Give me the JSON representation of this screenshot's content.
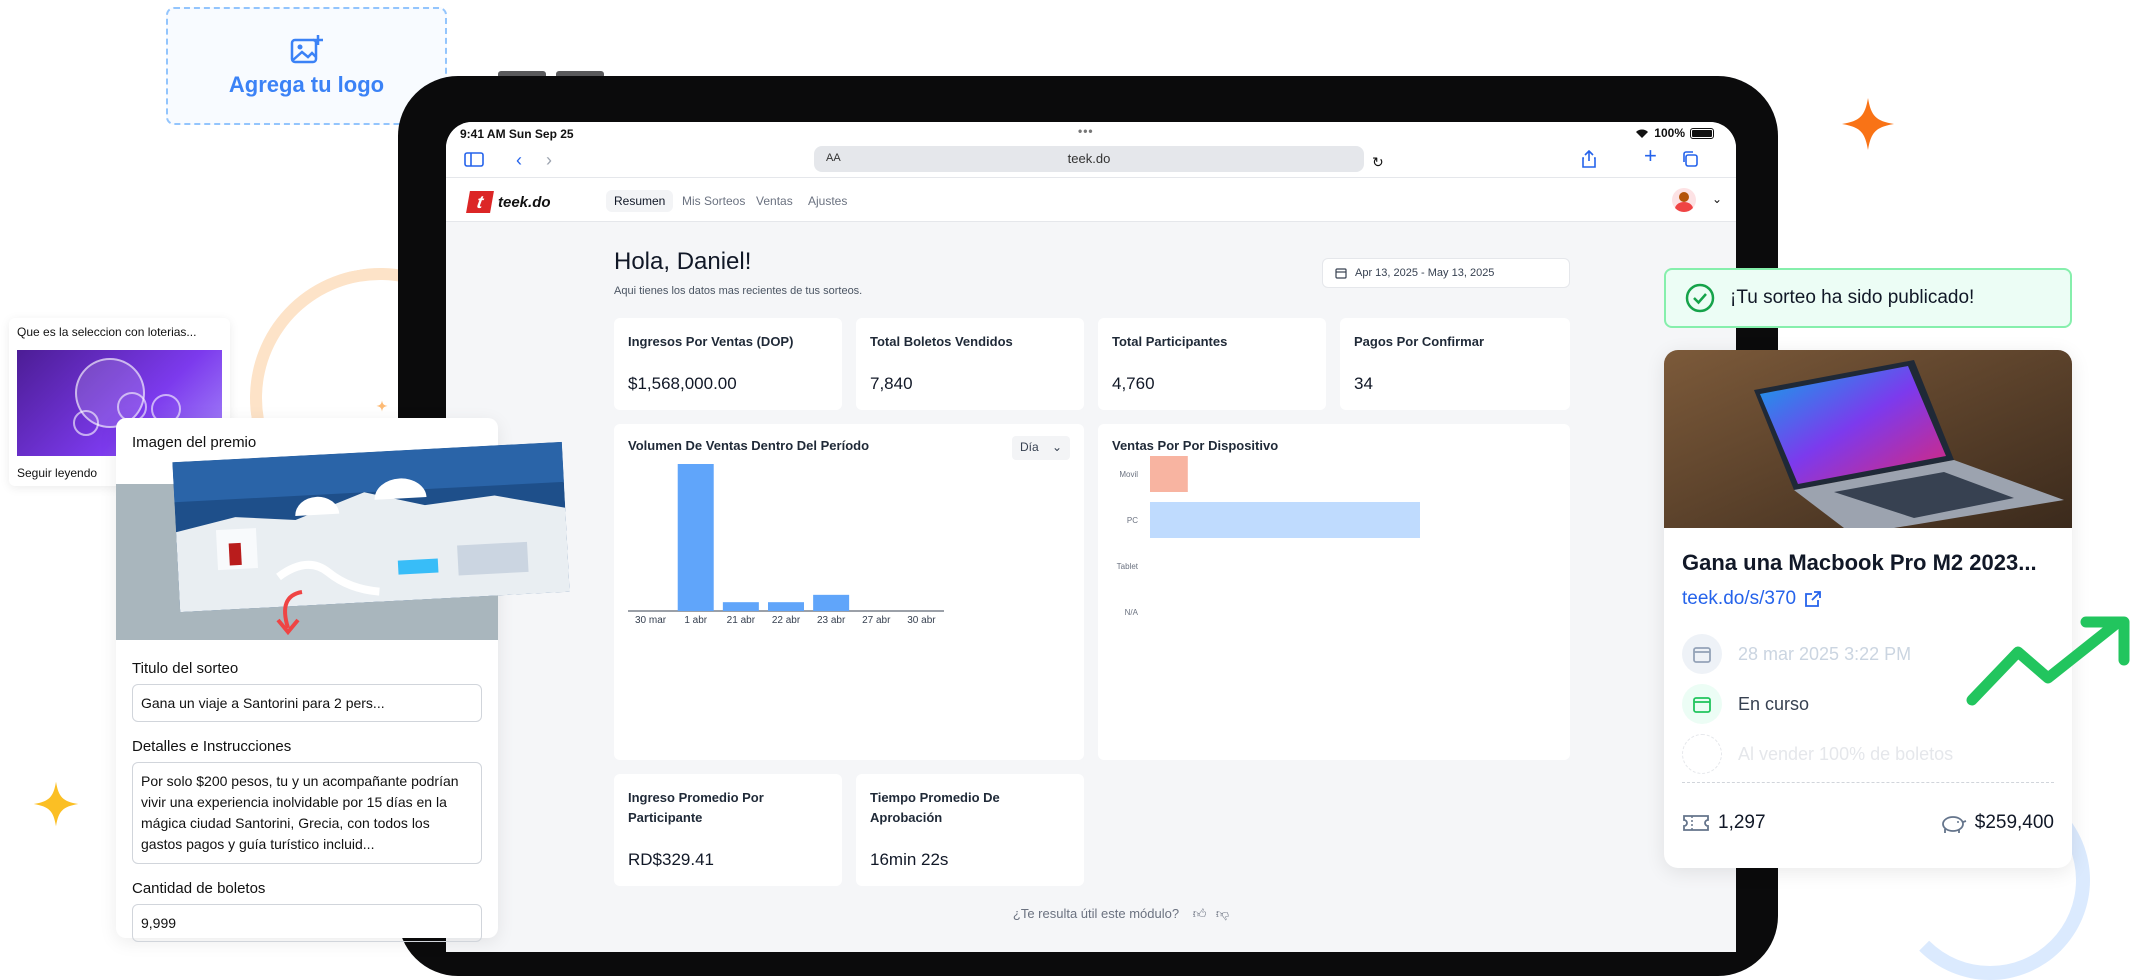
{
  "logo_placeholder": {
    "label": "Agrega tu logo"
  },
  "status_bar": {
    "time": "9:41 AM  Sun Sep 25",
    "battery": "100%"
  },
  "browser": {
    "text_size": "AA",
    "url": "teek.do"
  },
  "app": {
    "brand": "teek.do",
    "brand_mark": "t",
    "nav": [
      "Resumen",
      "Mis Sorteos",
      "Ventas",
      "Ajustes"
    ],
    "active_nav": "Resumen"
  },
  "dashboard": {
    "greeting": "Hola, Daniel!",
    "subtitle": "Aqui tienes los datos mas recientes de tus sorteos.",
    "date_range": "Apr 13, 2025 - May 13, 2025",
    "stats": [
      {
        "label": "Ingresos Por Ventas (DOP)",
        "value": "$1,568,000.00"
      },
      {
        "label": "Total Boletos Vendidos",
        "value": "7,840"
      },
      {
        "label": "Total Participantes",
        "value": "4,760"
      },
      {
        "label": "Pagos Por Confirmar",
        "value": "34"
      }
    ],
    "bottom_stats": [
      {
        "label": "Ingreso Promedio Por Participante",
        "value": "RD$329.41"
      },
      {
        "label": "Tiempo Promedio De Aprobación",
        "value": "16min 22s"
      }
    ],
    "feedback": "¿Te resulta útil este módulo?"
  },
  "chart_data": [
    {
      "type": "bar",
      "title": "Volumen De Ventas Dentro Del Período",
      "period_select": "Día",
      "categories": [
        "30 mar",
        "1 abr",
        "21 abr",
        "22 abr",
        "23 abr",
        "27 abr",
        "30 abr"
      ],
      "values": [
        0,
        100,
        6,
        6,
        11,
        0,
        0
      ],
      "color": "#60a5fa",
      "grid": false
    },
    {
      "type": "bar",
      "orientation": "horizontal",
      "title": "Ventas Por Por Dispositivo",
      "categories": [
        "Movil",
        "PC",
        "Tablet",
        "N/A"
      ],
      "values": [
        14,
        100,
        0,
        0
      ],
      "colors": [
        "#f8b4a1",
        "#bfdbfe",
        "#bfdbfe",
        "#bfdbfe"
      ],
      "grid": false
    }
  ],
  "news_card": {
    "title": "Que es la seleccion con loterias...",
    "read_more": "Seguir leyendo"
  },
  "form": {
    "image_label": "Imagen del premio",
    "title_label": "Titulo del sorteo",
    "title_value": "Gana un viaje a Santorini para 2 pers...",
    "details_label": "Detalles e Instrucciones",
    "details_value": "Por solo $200 pesos, tu y un acompañante podrían vivir una experiencia inolvidable por 15 días en la mágica ciudad Santorini, Grecia, con todos los gastos pagos y guía turístico incluid...",
    "tickets_label": "Cantidad de boletos",
    "tickets_value": "9,999"
  },
  "published": {
    "toast": "¡Tu sorteo ha sido publicado!",
    "title": "Gana una Macbook Pro M2 2023...",
    "link": "teek.do/s/370",
    "start_date": "28 mar 2025 3:22 PM",
    "status": "En curso",
    "end_condition": "Al vender 100% de boletos",
    "tickets": "1,297",
    "revenue": "$259,400"
  },
  "colors": {
    "accent": "#2563eb",
    "bar": "#60a5fa",
    "success": "#22c55e",
    "brand_red": "#dc2626",
    "sparkle": "#f97316"
  }
}
